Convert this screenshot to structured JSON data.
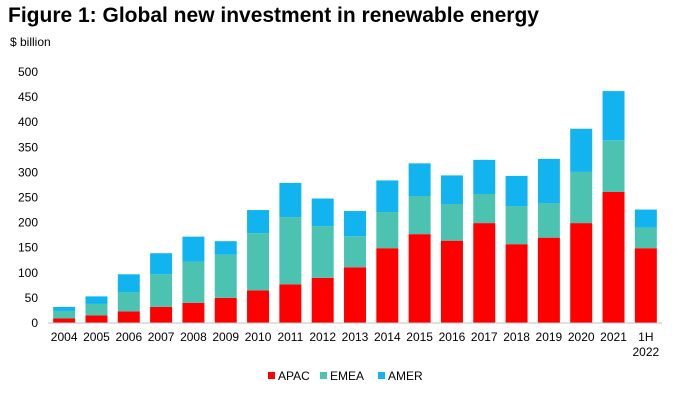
{
  "chart_data": {
    "type": "bar",
    "stacked": true,
    "title": "Figure 1: Global new investment in renewable energy",
    "unit_label": "$ billion",
    "ylim": [
      0,
      500
    ],
    "yticks": [
      0,
      50,
      100,
      150,
      200,
      250,
      300,
      350,
      400,
      450,
      500
    ],
    "grid": false,
    "legend_position": "bottom",
    "categories": [
      "2004",
      "2005",
      "2006",
      "2007",
      "2008",
      "2009",
      "2010",
      "2011",
      "2012",
      "2013",
      "2014",
      "2015",
      "2016",
      "2017",
      "2018",
      "2019",
      "2020",
      "2021",
      "1H 2022"
    ],
    "series": [
      {
        "name": "APAC",
        "color": "#ff0000",
        "values": [
          9,
          15,
          23,
          32,
          40,
          50,
          65,
          77,
          90,
          111,
          149,
          177,
          164,
          199,
          157,
          170,
          199,
          261,
          149
        ]
      },
      {
        "name": "EMEA",
        "color": "#4cc3b1",
        "values": [
          15,
          23,
          38,
          65,
          82,
          86,
          114,
          134,
          103,
          62,
          72,
          76,
          73,
          58,
          76,
          69,
          102,
          103,
          41
        ]
      },
      {
        "name": "AMER",
        "color": "#11b4ef",
        "values": [
          8,
          15,
          36,
          42,
          50,
          27,
          46,
          68,
          55,
          50,
          63,
          65,
          57,
          68,
          60,
          88,
          86,
          98,
          36
        ]
      }
    ]
  }
}
